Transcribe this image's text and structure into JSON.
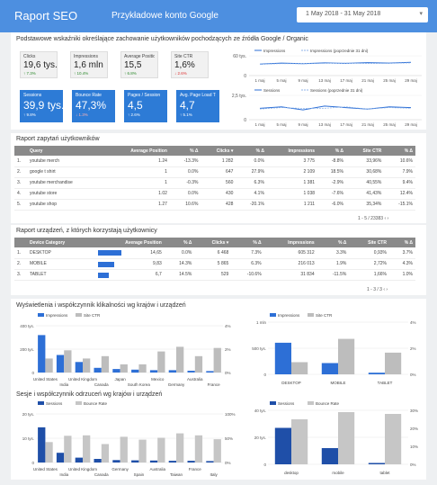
{
  "header": {
    "title": "Raport SEO",
    "account": "Przykładowe konto Google",
    "date_range": "1 May 2018 - 31 May 2018"
  },
  "summary": {
    "description": "Podstawowe wskaźniki określające zachowanie użytkowników pochodzących ze źródła Google / Organic",
    "kpis_top": [
      {
        "label": "Clicks",
        "value": "19,6 tys.",
        "change": "↑ 7.3%"
      },
      {
        "label": "Impressions",
        "value": "1,6 mln",
        "change": "↑ 10.4%"
      },
      {
        "label": "Average Position",
        "value": "15,5",
        "change": "↑ 6.8%"
      },
      {
        "label": "Site CTR",
        "value": "1,6%",
        "change": "↓ 2.6%"
      }
    ],
    "kpis_bottom": [
      {
        "label": "Sessions",
        "value": "39,9 tys.",
        "change": "↑ 9.8%"
      },
      {
        "label": "Bounce Rate",
        "value": "47,3%",
        "change": "↓ 1.3%"
      },
      {
        "label": "Pages / Session",
        "value": "4,5",
        "change": "↑ 2.6%"
      },
      {
        "label": "Avg. Page Load Time",
        "value": "4,7",
        "change": "↑ 5.1%"
      }
    ]
  },
  "line_charts": {
    "x_labels": [
      "1 maj",
      "5 maj",
      "9 maj",
      "13 maj",
      "17 maj",
      "21 maj",
      "25 maj",
      "29 maj"
    ],
    "top": {
      "legend": [
        "Impressions",
        "Impressions (poprzednie 31 dni)"
      ],
      "y_ticks": [
        "60 tys.",
        "0"
      ]
    },
    "bottom": {
      "legend": [
        "Sessions",
        "Sessions (poprzednie 31 dni)"
      ],
      "y_ticks": [
        "2,5 tys.",
        "0"
      ]
    }
  },
  "queries": {
    "title": "Raport zapytań użytkowników",
    "columns": [
      "Query",
      "Average Position",
      "% Δ",
      "Clicks ▾",
      "% Δ",
      "Impressions",
      "% Δ",
      "Site CTR",
      "% Δ"
    ],
    "rows": [
      [
        "1.",
        "youtube merch",
        "1.24",
        "-13.3%",
        "1 282",
        "0.0%",
        "3 775",
        "-8.8%",
        "33,96%",
        "10.6%"
      ],
      [
        "2.",
        "google t shirt",
        "1",
        "0.0%",
        "647",
        "27.9%",
        "2 109",
        "18.5%",
        "30,68%",
        "7.9%"
      ],
      [
        "3.",
        "youtube merchandise",
        "1",
        "-0.3%",
        "560",
        "6.3%",
        "1 381",
        "-2.9%",
        "40,55%",
        "9.4%"
      ],
      [
        "4.",
        "youtube store",
        "1.02",
        "0.0%",
        "430",
        "4.1%",
        "1 038",
        "-7.6%",
        "41,43%",
        "12.4%"
      ],
      [
        "5.",
        "youtube shop",
        "1.27",
        "10.6%",
        "428",
        "-20.1%",
        "1 211",
        "-6.0%",
        "35,34%",
        "-15.1%"
      ]
    ],
    "pager": "1 - 5 / 23383"
  },
  "devices": {
    "title": "Raport urządzeń, z których korzystają użytkownicy",
    "columns": [
      "Device Category",
      "Average Position",
      "% Δ",
      "Clicks ▾",
      "% Δ",
      "Impressions",
      "% Δ",
      "Site CTR",
      "% Δ"
    ],
    "rows": [
      [
        "1.",
        "DESKTOP",
        "14,65",
        "0.0%",
        "6 468",
        "7.3%",
        "605 312",
        "3.3%",
        "0,93%",
        "3.7%"
      ],
      [
        "2.",
        "MOBILE",
        "9,83",
        "14.3%",
        "5 865",
        "6.3%",
        "216 013",
        "1.9%",
        "2,72%",
        "4.3%"
      ],
      [
        "3.",
        "TABLET",
        "6,7",
        "14.5%",
        "529",
        "-10.6%",
        "31 834",
        "-11.5%",
        "1,66%",
        "1.0%"
      ]
    ],
    "bar_fraction": [
      1.0,
      0.67,
      0.46
    ],
    "pager": "1 - 3 / 3"
  },
  "country_charts": {
    "title1": "Wyświetlenia i współczynnik klikalności wg krajów i urządzeń",
    "title2": "Sesje i współczynnik odrzuceń wg krajów i urządzeń"
  },
  "colors": {
    "header": "#4d8fe0",
    "primary": "#2d6fd6",
    "secondary": "#bdbdbd",
    "positive": "#2d8a2d",
    "negative": "#dd3333"
  },
  "chart_data": [
    {
      "type": "line",
      "x": [
        "1 maj",
        "5 maj",
        "9 maj",
        "13 maj",
        "17 maj",
        "21 maj",
        "25 maj",
        "29 maj"
      ],
      "series": [
        {
          "name": "Impressions",
          "values": [
            48000,
            52000,
            50000,
            53000,
            51000,
            54000,
            52000,
            55000
          ]
        },
        {
          "name": "Impressions (poprzednie 31 dni)",
          "values": [
            47000,
            50000,
            49000,
            51000,
            52000,
            50000,
            51000,
            53000
          ]
        }
      ],
      "ylim": [
        0,
        60000
      ]
    },
    {
      "type": "line",
      "x": [
        "1 maj",
        "5 maj",
        "9 maj",
        "13 maj",
        "17 maj",
        "21 maj",
        "25 maj",
        "29 maj"
      ],
      "series": [
        {
          "name": "Sessions",
          "values": [
            1500,
            1700,
            1300,
            1800,
            1600,
            1400,
            1700,
            1600
          ]
        },
        {
          "name": "Sessions (poprzednie 31 dni)",
          "values": [
            1400,
            1600,
            1500,
            1500,
            1700,
            1400,
            1600,
            1500
          ]
        }
      ],
      "ylim": [
        0,
        2500
      ]
    },
    {
      "type": "bar",
      "categories": [
        "United States",
        "India",
        "United Kingdom",
        "Canada",
        "Japan",
        "South Korea",
        "Mexico",
        "Germany",
        "Australia",
        "France"
      ],
      "series": [
        {
          "name": "Impressions",
          "values": [
            320000,
            150000,
            90000,
            40000,
            30000,
            25000,
            20000,
            20000,
            15000,
            12000
          ]
        },
        {
          "name": "Site CTR",
          "values": [
            0.012,
            0.019,
            0.012,
            0.014,
            0.007,
            0.007,
            0.018,
            0.022,
            0.014,
            0.021
          ]
        }
      ],
      "y_ticks_left": [
        "400 tys.",
        "200 tys.",
        "0"
      ],
      "y_ticks_right": [
        "4%",
        "2%",
        "0%"
      ]
    },
    {
      "type": "bar",
      "categories": [
        "DESKTOP",
        "MOBILE",
        "TABLET"
      ],
      "series": [
        {
          "name": "Impressions",
          "values": [
            605312,
            216013,
            31834
          ]
        },
        {
          "name": "Site CTR",
          "values": [
            0.0093,
            0.0272,
            0.0166
          ]
        }
      ],
      "y_ticks_left": [
        "1 mln",
        "500 tys.",
        "0"
      ],
      "y_ticks_right": [
        "4%",
        "2%",
        "0%"
      ]
    },
    {
      "type": "bar",
      "categories": [
        "United States",
        "India",
        "United Kingdom",
        "Canada",
        "Germany",
        "Spain",
        "Australia",
        "Taiwan",
        "France",
        "Italy"
      ],
      "series": [
        {
          "name": "Sessions",
          "values": [
            14500,
            4000,
            2000,
            1500,
            1000,
            900,
            800,
            700,
            700,
            600
          ]
        },
        {
          "name": "Bounce Rate",
          "values": [
            0.42,
            0.55,
            0.56,
            0.38,
            0.53,
            0.47,
            0.51,
            0.6,
            0.56,
            0.48
          ]
        }
      ],
      "y_ticks_left": [
        "20 tys.",
        "10 tys.",
        "0"
      ],
      "y_ticks_right": [
        "100%",
        "50%",
        "0%"
      ]
    },
    {
      "type": "bar",
      "categories": [
        "desktop",
        "mobile",
        "tablet"
      ],
      "series": [
        {
          "name": "Sessions",
          "values": [
            27000,
            12000,
            1000
          ]
        },
        {
          "name": "Bounce Rate",
          "values": [
            0.25,
            0.29,
            0.28
          ]
        }
      ],
      "y_ticks_left": [
        "40 tys.",
        "20 tys.",
        "0"
      ],
      "y_ticks_right": [
        "30%",
        "20%",
        "10%",
        "0%"
      ]
    }
  ]
}
